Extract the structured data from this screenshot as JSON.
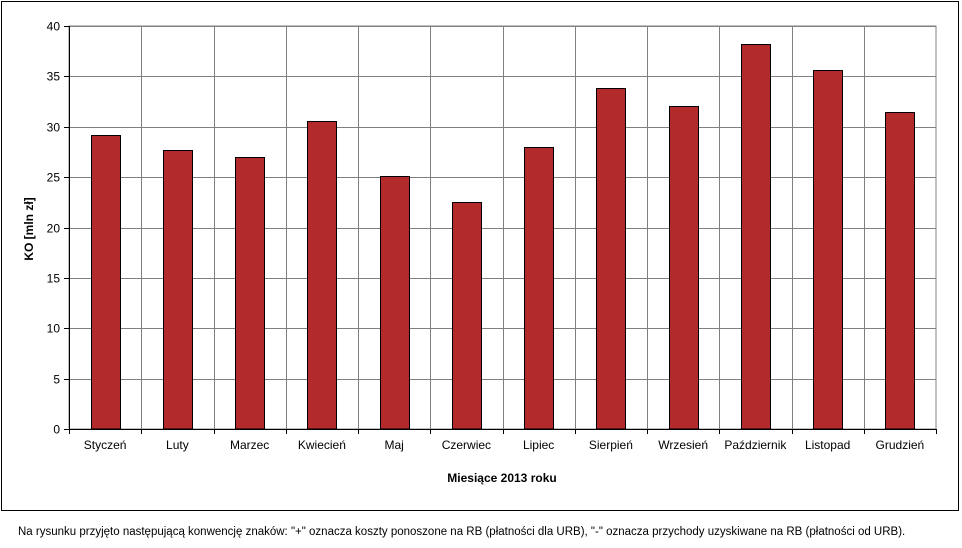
{
  "chart_data": {
    "type": "bar",
    "categories": [
      "Styczeń",
      "Luty",
      "Marzec",
      "Kwiecień",
      "Maj",
      "Czerwiec",
      "Lipiec",
      "Sierpień",
      "Wrzesień",
      "Październik",
      "Listopad",
      "Grudzień"
    ],
    "values": [
      29.2,
      27.7,
      27.0,
      30.6,
      25.1,
      22.5,
      28.0,
      33.8,
      32.1,
      38.2,
      35.6,
      31.5
    ],
    "xlabel": "Miesiące 2013  roku",
    "ylabel": "KO [mln zł]",
    "ylim": [
      0,
      40
    ],
    "yticks": [
      0,
      5,
      10,
      15,
      20,
      25,
      30,
      35,
      40
    ],
    "grid": true,
    "bar_color": "#B22A2A",
    "grid_color": "#808080"
  },
  "footnote": "Na rysunku przyjęto następującą konwencję znaków: \"+\" oznacza koszty ponoszone na RB (płatności dla URB), \"-\" oznacza przychody uzyskiwane na RB (płatności od URB)."
}
